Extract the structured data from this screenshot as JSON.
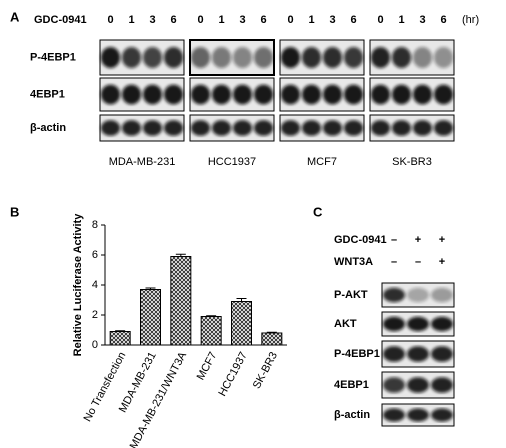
{
  "panel_a": {
    "label": "A",
    "treatment": "GDC-0941",
    "time_points": [
      "0",
      "1",
      "3",
      "6"
    ],
    "unit": "(hr)",
    "rows": [
      "P-4EBP1",
      "4EBP1",
      "β-actin"
    ],
    "cell_lines": [
      "MDA-MB-231",
      "HCC1937",
      "MCF7",
      "SK-BR3"
    ]
  },
  "panel_b": {
    "label": "B"
  },
  "chart_data": {
    "type": "bar",
    "y_label": "Relative Luciferase Activity",
    "categories": [
      "No Transfection",
      "MDA-MB-231",
      "MDA-MB-231/WNT3A",
      "MCF7",
      "HCC1937",
      "SK-BR3"
    ],
    "values": [
      0.9,
      3.7,
      5.9,
      1.9,
      2.9,
      0.8
    ],
    "errors": [
      0.05,
      0.1,
      0.15,
      0.05,
      0.2,
      0.05
    ],
    "ylim": [
      0,
      8
    ],
    "yticks": [
      0,
      2,
      4,
      6,
      8
    ],
    "grid": false
  },
  "panel_c": {
    "label": "C",
    "treatments": [
      {
        "name": "GDC-0941",
        "signs": [
          "–",
          "+",
          "+"
        ]
      },
      {
        "name": "WNT3A",
        "signs": [
          "–",
          "–",
          "+"
        ]
      }
    ],
    "rows": [
      "P-AKT",
      "AKT",
      "P-4EBP1",
      "4EBP1",
      "β-actin"
    ]
  }
}
